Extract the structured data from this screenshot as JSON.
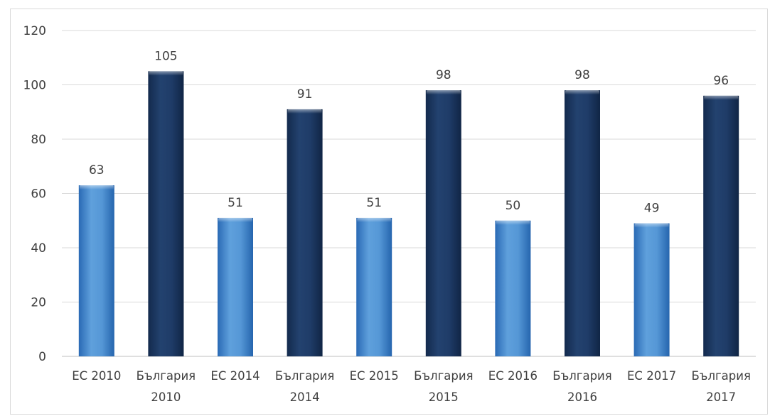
{
  "chart_data": {
    "type": "bar",
    "title": "",
    "xlabel": "",
    "ylabel": "",
    "ylim": [
      0,
      120
    ],
    "yticks": [
      0,
      20,
      40,
      60,
      80,
      100,
      120
    ],
    "grid": true,
    "legend": "none",
    "categories": [
      [
        "ЕС 2010"
      ],
      [
        "България",
        "2010"
      ],
      [
        "ЕС 2014"
      ],
      [
        "България",
        "2014"
      ],
      [
        "ЕС 2015"
      ],
      [
        "България",
        "2015"
      ],
      [
        "ЕС 2016"
      ],
      [
        "България",
        "2016"
      ],
      [
        "ЕС 2017"
      ],
      [
        "България",
        "2017"
      ]
    ],
    "values": [
      63,
      105,
      51,
      91,
      51,
      98,
      50,
      98,
      49,
      96
    ],
    "bar_groups": [
      "eu",
      "bg",
      "eu",
      "bg",
      "eu",
      "bg",
      "eu",
      "bg",
      "eu",
      "bg"
    ],
    "colors": {
      "eu_top": "#5b9bd5",
      "eu_mid": "#3a7cc4",
      "eu_edge": "#1f5fa8",
      "bg_top": "#274a7a",
      "bg_mid": "#1b3660",
      "bg_edge": "#0f2242",
      "grid": "#d9d9d9",
      "axis": "#bfbfbf"
    }
  }
}
